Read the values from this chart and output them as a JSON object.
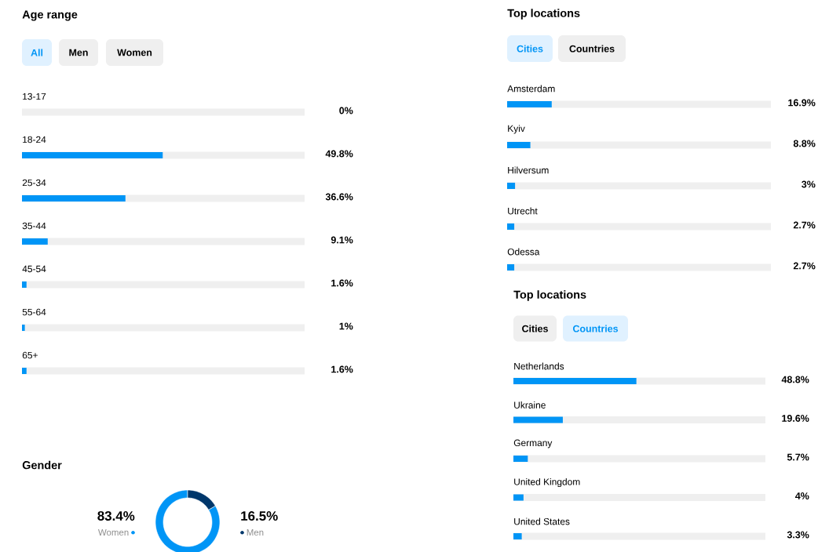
{
  "chart_data": [
    {
      "type": "bar",
      "orientation": "horizontal",
      "title": "Age range",
      "annotations": [
        "All",
        "Men",
        "Women"
      ],
      "categories": [
        "13-17",
        "18-24",
        "25-34",
        "35-44",
        "45-54",
        "55-64",
        "65+"
      ],
      "values": [
        0,
        49.8,
        36.6,
        9.1,
        1.6,
        1,
        1.6
      ],
      "value_labels": [
        "0%",
        "49.8%",
        "36.6%",
        "9.1%",
        "1.6%",
        "1%",
        "1.6%"
      ],
      "color": "#0095f6",
      "xlim": [
        0,
        100
      ]
    },
    {
      "type": "bar",
      "orientation": "horizontal",
      "title": "Top locations",
      "annotations": [
        "Cities",
        "Countries"
      ],
      "categories": [
        "Amsterdam",
        "Kyiv",
        "Hilversum",
        "Utrecht",
        "Odessa"
      ],
      "values": [
        16.9,
        8.8,
        3,
        2.7,
        2.7
      ],
      "value_labels": [
        "16.9%",
        "8.8%",
        "3%",
        "2.7%",
        "2.7%"
      ],
      "color": "#0095f6",
      "xlim": [
        0,
        100
      ]
    },
    {
      "type": "bar",
      "orientation": "horizontal",
      "title": "Top locations",
      "annotations": [
        "Cities",
        "Countries"
      ],
      "categories": [
        "Netherlands",
        "Ukraine",
        "Germany",
        "United Kingdom",
        "United States"
      ],
      "values": [
        48.8,
        19.6,
        5.7,
        4,
        3.3
      ],
      "value_labels": [
        "48.8%",
        "19.6%",
        "5.7%",
        "4%",
        "3.3%"
      ],
      "color": "#0095f6",
      "xlim": [
        0,
        100
      ]
    },
    {
      "type": "donut",
      "title": "Gender",
      "categories": [
        "Women",
        "Men"
      ],
      "values": [
        83.4,
        16.5
      ],
      "value_labels": [
        "83.4%",
        "16.5%"
      ],
      "colors": [
        "#0095f6",
        "#00376b"
      ]
    }
  ]
}
